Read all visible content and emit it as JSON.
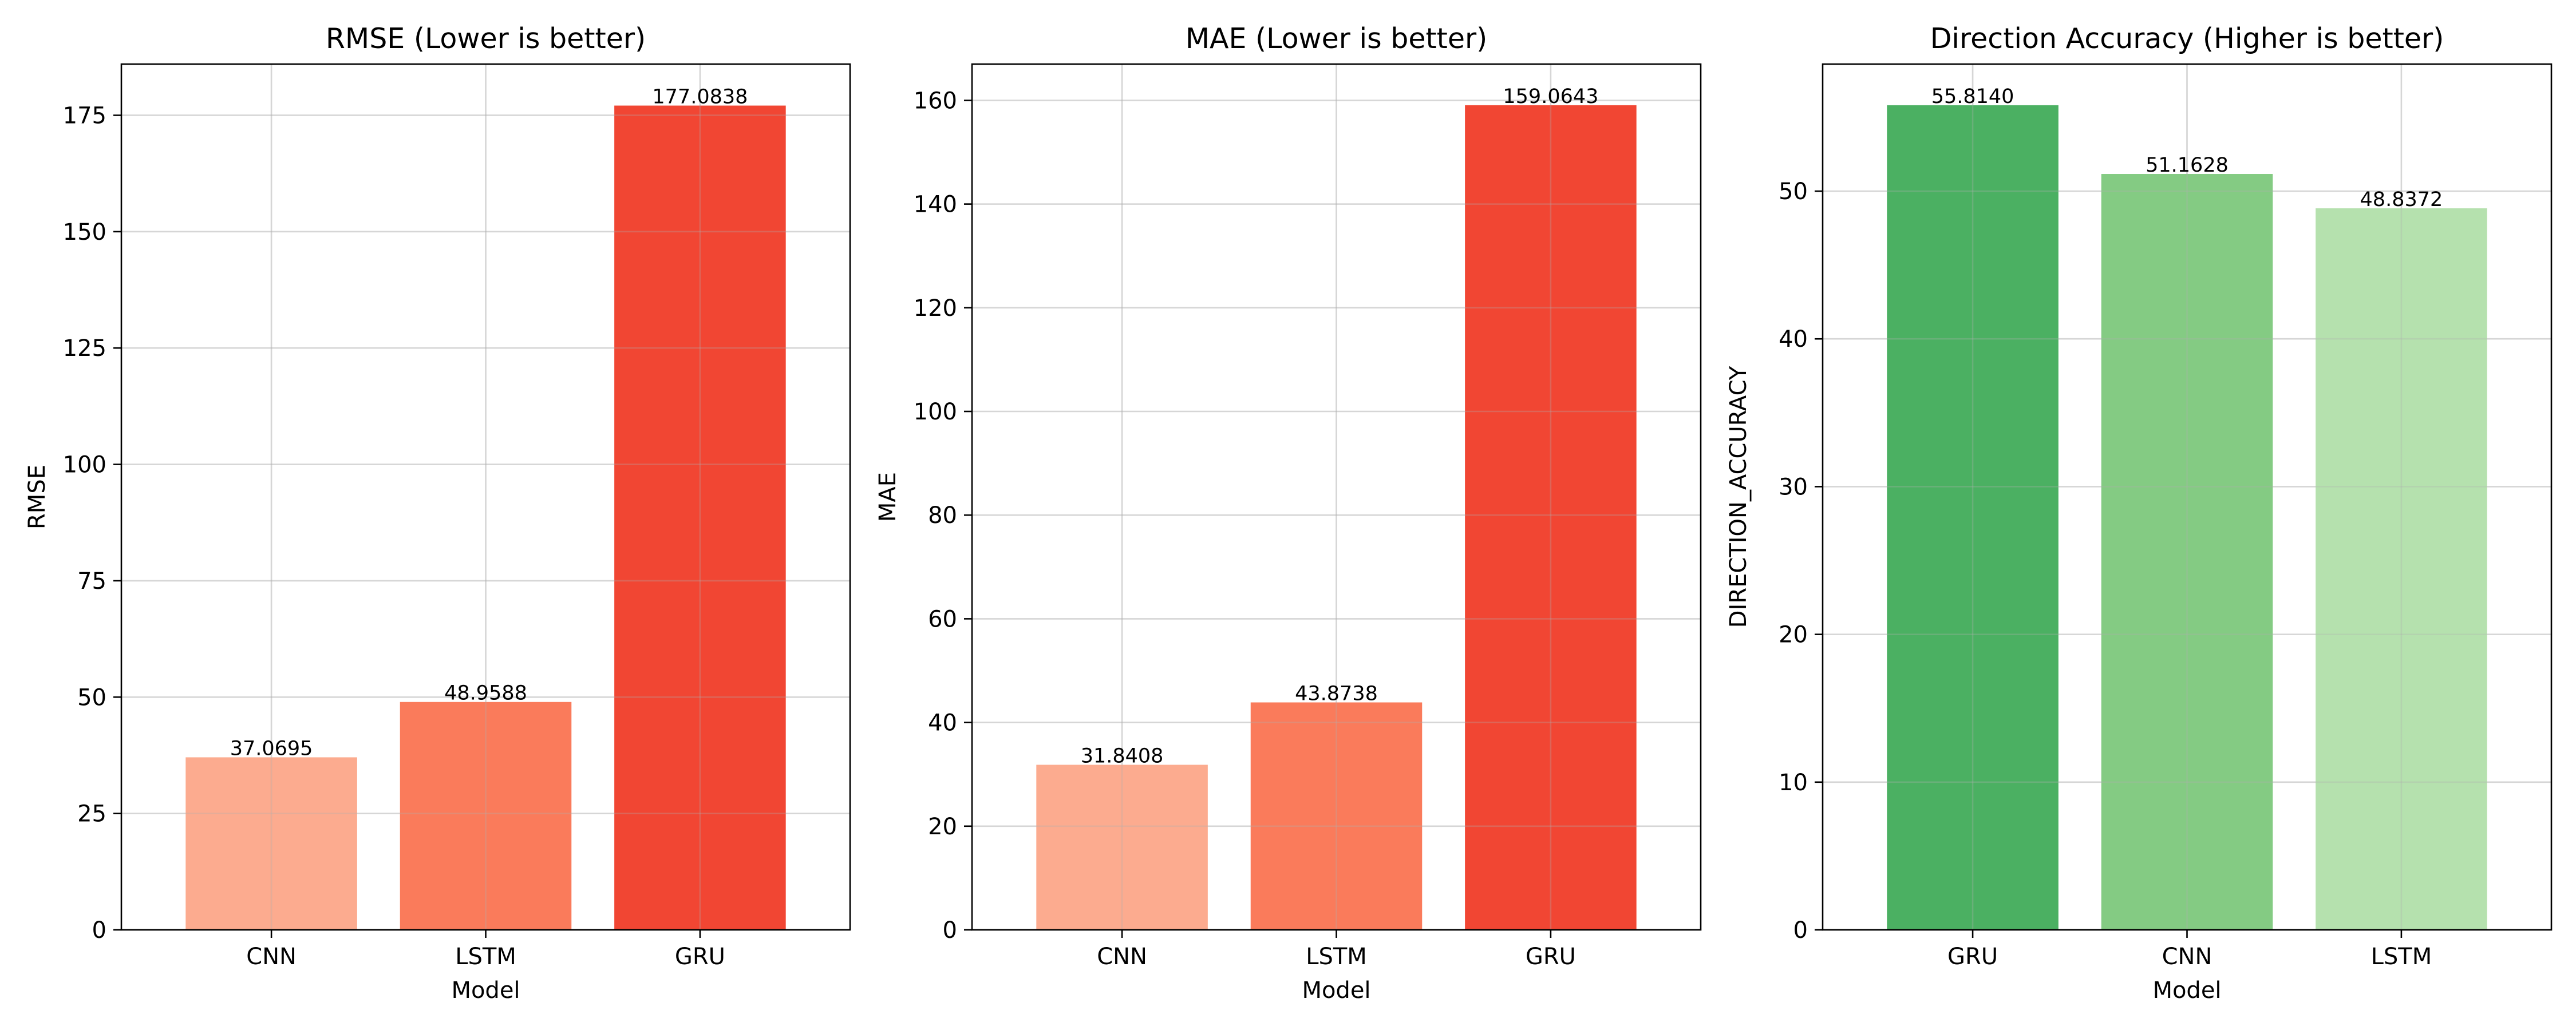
{
  "chart_data": [
    {
      "type": "bar",
      "title": "RMSE (Lower is better)",
      "xlabel": "Model",
      "ylabel": "RMSE",
      "categories": [
        "CNN",
        "LSTM",
        "GRU"
      ],
      "values": [
        37.0695,
        48.9588,
        177.0838
      ],
      "value_labels": [
        "37.0695",
        "48.9588",
        "177.0838"
      ],
      "colors": [
        "#fcab8f",
        "#fa7b5b",
        "#f14633"
      ],
      "ylim": [
        0,
        186
      ],
      "yticks": [
        0,
        25,
        50,
        75,
        100,
        125,
        150,
        175
      ],
      "grid": true
    },
    {
      "type": "bar",
      "title": "MAE (Lower is better)",
      "xlabel": "Model",
      "ylabel": "MAE",
      "categories": [
        "CNN",
        "LSTM",
        "GRU"
      ],
      "values": [
        31.8408,
        43.8738,
        159.0643
      ],
      "value_labels": [
        "31.8408",
        "43.8738",
        "159.0643"
      ],
      "colors": [
        "#fcab8f",
        "#fa7b5b",
        "#f14633"
      ],
      "ylim": [
        0,
        167
      ],
      "yticks": [
        0,
        20,
        40,
        60,
        80,
        100,
        120,
        140,
        160
      ],
      "grid": true
    },
    {
      "type": "bar",
      "title": "Direction Accuracy (Higher is better)",
      "xlabel": "Model",
      "ylabel": "DIRECTION_ACCURACY",
      "categories": [
        "GRU",
        "CNN",
        "LSTM"
      ],
      "values": [
        55.814,
        51.1628,
        48.8372
      ],
      "value_labels": [
        "55.8140",
        "51.1628",
        "48.8372"
      ],
      "colors": [
        "#4bb062",
        "#84cb83",
        "#b5e1ae"
      ],
      "ylim": [
        0,
        58.6
      ],
      "yticks": [
        0,
        10,
        20,
        30,
        40,
        50
      ],
      "grid": true
    }
  ]
}
